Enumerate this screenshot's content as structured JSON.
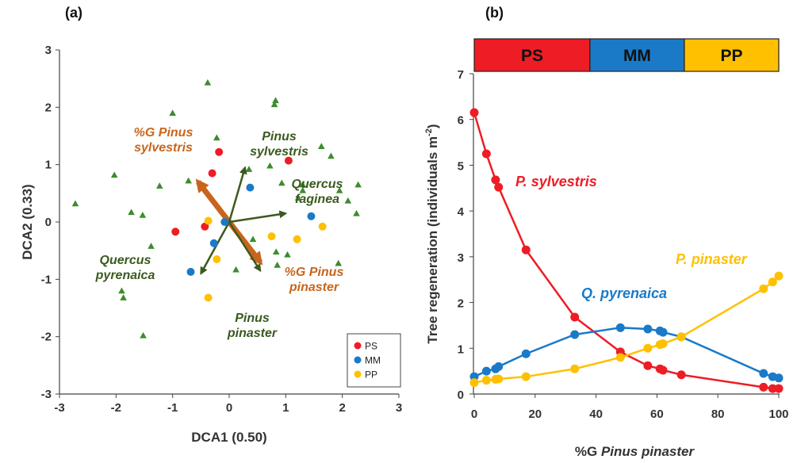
{
  "colors": {
    "PS": "#ee1c25",
    "MM": "#1a7ac8",
    "PP": "#ffc000",
    "triangle": "#3c8c2c",
    "species_arrow": "#3c5a1e",
    "pinus_arrow": "#c8651c",
    "species_text": "#3a5a1e",
    "pinus_text": "#c8651c"
  },
  "panel_a": {
    "label": "(a)",
    "xlabel": "DCA1 (0.50)",
    "ylabel": "DCA2 (0.33)",
    "legend": [
      "PS",
      "MM",
      "PP"
    ],
    "vector_labels": [
      {
        "id": "gps",
        "lines": [
          "%G Pinus",
          "sylvestris"
        ],
        "color": "pinus"
      },
      {
        "id": "ps",
        "lines": [
          "Pinus",
          "sylvestris"
        ],
        "color": "species"
      },
      {
        "id": "qf",
        "lines": [
          "Quercus",
          "faginea"
        ],
        "color": "species"
      },
      {
        "id": "qp",
        "lines": [
          "Quercus",
          "pyrenaica"
        ],
        "color": "species"
      },
      {
        "id": "gpp",
        "lines": [
          "%G  Pinus",
          "pinaster"
        ],
        "color": "pinus"
      },
      {
        "id": "pp",
        "lines": [
          "Pinus",
          "pinaster"
        ],
        "color": "species"
      }
    ]
  },
  "panel_b": {
    "label": "(b)",
    "xlabel_prefix": "%G ",
    "xlabel_italic": "Pinus pinaster",
    "ylabel": "Tree regeneration (individuals m",
    "ylabel_sup": "-2",
    "ylabel_close": ")",
    "segments": [
      {
        "name": "PS",
        "from": 0,
        "to": 38
      },
      {
        "name": "MM",
        "from": 38,
        "to": 69
      },
      {
        "name": "PP",
        "from": 69,
        "to": 100
      }
    ],
    "series_labels": {
      "sylvestris": "P. sylvestris",
      "pyrenaica": "Q. pyrenaica",
      "pinaster": "P. pinaster"
    }
  },
  "chart_data": [
    {
      "type": "scatter",
      "title": "",
      "xlabel": "DCA1 (0.50)",
      "ylabel": "DCA2 (0.33)",
      "xlim": [
        -3,
        3
      ],
      "ylim": [
        -3,
        3
      ],
      "xticks": [
        -3,
        -2,
        -1,
        0,
        1,
        2,
        3
      ],
      "yticks": [
        -3,
        -2,
        -1,
        0,
        1,
        2,
        3
      ],
      "grid": false,
      "legend_position": "bottom-right",
      "series": [
        {
          "name": "PS",
          "points": [
            [
              -0.95,
              -0.17
            ],
            [
              -0.43,
              -0.08
            ],
            [
              -0.3,
              0.85
            ],
            [
              -0.18,
              1.22
            ],
            [
              1.05,
              1.07
            ]
          ]
        },
        {
          "name": "MM",
          "points": [
            [
              -0.68,
              -0.87
            ],
            [
              -0.27,
              -0.37
            ],
            [
              -0.08,
              0.0
            ],
            [
              0.37,
              0.6
            ],
            [
              1.45,
              0.1
            ]
          ]
        },
        {
          "name": "PP",
          "points": [
            [
              -0.37,
              0.02
            ],
            [
              -0.37,
              -1.32
            ],
            [
              -0.22,
              -0.65
            ],
            [
              0.75,
              -0.25
            ],
            [
              1.2,
              -0.3
            ],
            [
              1.65,
              -0.08
            ]
          ]
        },
        {
          "name": "",
          "points": [
            [
              -2.72,
              0.32
            ],
            [
              -2.03,
              0.82
            ],
            [
              -1.9,
              -1.2
            ],
            [
              -1.87,
              -1.32
            ],
            [
              -1.73,
              0.17
            ],
            [
              -1.53,
              0.12
            ],
            [
              -1.52,
              -1.98
            ],
            [
              -1.38,
              -0.42
            ],
            [
              -1.23,
              0.63
            ],
            [
              -1.0,
              1.9
            ],
            [
              -0.72,
              0.72
            ],
            [
              -0.38,
              2.43
            ],
            [
              -0.22,
              1.47
            ],
            [
              0.12,
              -0.83
            ],
            [
              0.35,
              0.92
            ],
            [
              0.42,
              -0.3
            ],
            [
              0.72,
              0.98
            ],
            [
              0.8,
              2.05
            ],
            [
              0.82,
              2.12
            ],
            [
              0.83,
              -0.52
            ],
            [
              0.85,
              -0.75
            ],
            [
              0.93,
              0.68
            ],
            [
              1.03,
              -0.57
            ],
            [
              1.22,
              0.42
            ],
            [
              1.3,
              0.65
            ],
            [
              1.3,
              0.55
            ],
            [
              1.63,
              1.32
            ],
            [
              1.8,
              1.15
            ],
            [
              1.95,
              0.55
            ],
            [
              1.93,
              -0.72
            ],
            [
              2.1,
              0.37
            ],
            [
              2.28,
              0.65
            ],
            [
              2.25,
              0.15
            ]
          ]
        }
      ],
      "vectors": [
        {
          "name": "%G Pinus sylvestris",
          "x": -0.55,
          "y": 0.7
        },
        {
          "name": "%G Pinus pinaster",
          "x": 0.55,
          "y": -0.7
        },
        {
          "name": "Pinus sylvestris",
          "x": 0.28,
          "y": 0.95
        },
        {
          "name": "Quercus faginea",
          "x": 1.0,
          "y": 0.15
        },
        {
          "name": "Quercus pyrenaica",
          "x": -0.5,
          "y": -0.9
        },
        {
          "name": "Pinus pinaster",
          "x": 0.55,
          "y": -0.85
        }
      ]
    },
    {
      "type": "line",
      "title": "",
      "xlabel": "%G Pinus pinaster",
      "ylabel": "Tree regeneration (individuals m-2)",
      "xlim": [
        0,
        100
      ],
      "ylim": [
        0,
        7
      ],
      "xticks": [
        0,
        20,
        40,
        60,
        80,
        100
      ],
      "yticks": [
        0,
        1,
        2,
        3,
        4,
        5,
        6,
        7
      ],
      "grid": false,
      "series": [
        {
          "name": "P. sylvestris",
          "x": [
            0,
            4,
            7,
            8,
            17,
            33,
            48,
            57,
            61,
            62,
            68,
            95,
            98,
            100
          ],
          "y": [
            6.15,
            5.25,
            4.68,
            4.52,
            3.15,
            1.68,
            0.92,
            0.62,
            0.55,
            0.52,
            0.42,
            0.15,
            0.12,
            0.12
          ]
        },
        {
          "name": "Q. pyrenaica",
          "x": [
            0,
            4,
            7,
            8,
            17,
            33,
            48,
            57,
            61,
            62,
            68,
            95,
            98,
            100
          ],
          "y": [
            0.38,
            0.5,
            0.55,
            0.6,
            0.88,
            1.3,
            1.45,
            1.42,
            1.38,
            1.35,
            1.25,
            0.45,
            0.38,
            0.35
          ]
        },
        {
          "name": "P. pinaster",
          "x": [
            0,
            4,
            7,
            8,
            17,
            33,
            48,
            57,
            61,
            62,
            68,
            95,
            98,
            100
          ],
          "y": [
            0.25,
            0.3,
            0.32,
            0.33,
            0.38,
            0.55,
            0.8,
            1.0,
            1.08,
            1.1,
            1.25,
            2.3,
            2.45,
            2.58
          ]
        }
      ]
    }
  ]
}
